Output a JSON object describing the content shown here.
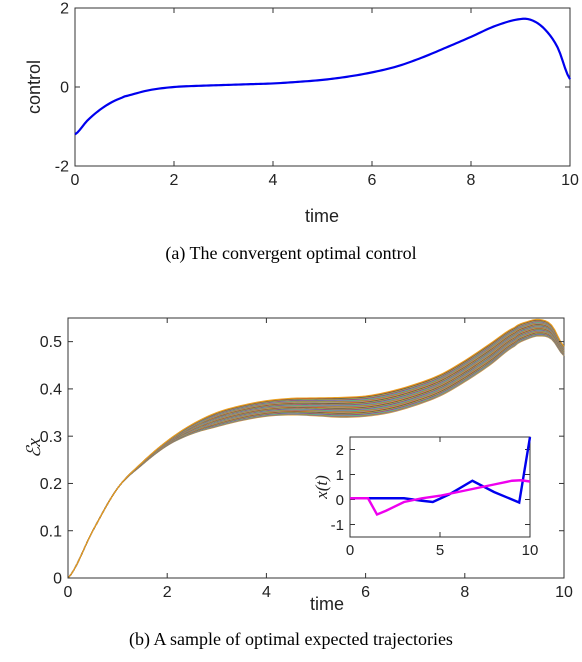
{
  "chart_data": [
    {
      "type": "line",
      "caption": "(a) The convergent optimal control",
      "xlabel": "time",
      "ylabel": "control",
      "xlim": [
        0,
        10
      ],
      "ylim": [
        -2,
        2
      ],
      "xticks": [
        "0",
        "2",
        "4",
        "6",
        "8",
        "10"
      ],
      "yticks": [
        "-2",
        "0",
        "2"
      ],
      "series": [
        {
          "color": "#0000ee",
          "x": [
            0,
            0.25,
            0.5,
            0.75,
            1,
            1.5,
            2,
            2.5,
            3,
            3.5,
            4,
            4.5,
            5,
            5.5,
            6,
            6.5,
            7,
            7.5,
            8,
            8.5,
            9,
            9.25,
            9.5,
            9.75,
            10
          ],
          "y": [
            -1.2,
            -0.85,
            -0.58,
            -0.38,
            -0.24,
            -0.08,
            0.0,
            0.03,
            0.05,
            0.07,
            0.09,
            0.13,
            0.18,
            0.26,
            0.37,
            0.52,
            0.74,
            1.0,
            1.27,
            1.55,
            1.72,
            1.68,
            1.45,
            1.0,
            0.2
          ]
        }
      ]
    },
    {
      "type": "line",
      "caption": "(b) A sample of optimal expected trajectories",
      "xlabel": "time",
      "ylabel_math": "ℰx",
      "xlim": [
        0,
        10
      ],
      "ylim": [
        0,
        0.55
      ],
      "xticks": [
        "0",
        "2",
        "4",
        "6",
        "8",
        "10"
      ],
      "yticks": [
        "0",
        "0.1",
        "0.2",
        "0.3",
        "0.4",
        "0.5"
      ],
      "band": {
        "colors": [
          "#e8a020",
          "#6a8fcf",
          "#c85a3c",
          "#8cbf3f",
          "#33aacc",
          "#d05090",
          "#555577",
          "#e0c040",
          "#3c7f6a",
          "#b0402a"
        ],
        "x": [
          0,
          0.5,
          1,
          1.5,
          2,
          2.5,
          3,
          3.5,
          4,
          4.5,
          5,
          5.5,
          6,
          6.5,
          7,
          7.5,
          8,
          8.5,
          9,
          9.25,
          9.5,
          9.75,
          10
        ],
        "lower": [
          0,
          0.1,
          0.19,
          0.24,
          0.28,
          0.305,
          0.32,
          0.333,
          0.342,
          0.345,
          0.343,
          0.34,
          0.342,
          0.35,
          0.365,
          0.385,
          0.415,
          0.45,
          0.49,
          0.505,
          0.512,
          0.505,
          0.47
        ],
        "upper": [
          0,
          0.1,
          0.19,
          0.245,
          0.29,
          0.325,
          0.35,
          0.365,
          0.375,
          0.38,
          0.381,
          0.382,
          0.385,
          0.395,
          0.41,
          0.43,
          0.46,
          0.495,
          0.53,
          0.542,
          0.547,
          0.535,
          0.49
        ]
      },
      "inset": {
        "type": "line",
        "ylabel_math": "x(t)",
        "xlim": [
          0,
          10
        ],
        "ylim": [
          -1.5,
          2.5
        ],
        "xticks": [
          "0",
          "5",
          "10"
        ],
        "yticks": [
          "-1",
          "0",
          "1",
          "2"
        ],
        "series": [
          {
            "color": "#0000ee",
            "x": [
              0,
              1,
              2,
              3,
              4,
              4.6,
              5.5,
              6.8,
              8,
              9.4,
              10
            ],
            "y": [
              0.05,
              0.05,
              0.05,
              0.05,
              -0.05,
              -0.1,
              0.2,
              0.75,
              0.3,
              -0.12,
              2.5
            ]
          },
          {
            "color": "#ee00ee",
            "x": [
              0,
              1,
              1.5,
              2,
              3,
              4,
              5,
              6,
              7,
              8,
              9,
              9.5,
              10
            ],
            "y": [
              0.05,
              0.05,
              -0.6,
              -0.45,
              -0.1,
              0.05,
              0.15,
              0.3,
              0.45,
              0.6,
              0.75,
              0.77,
              0.72
            ]
          }
        ]
      }
    }
  ]
}
